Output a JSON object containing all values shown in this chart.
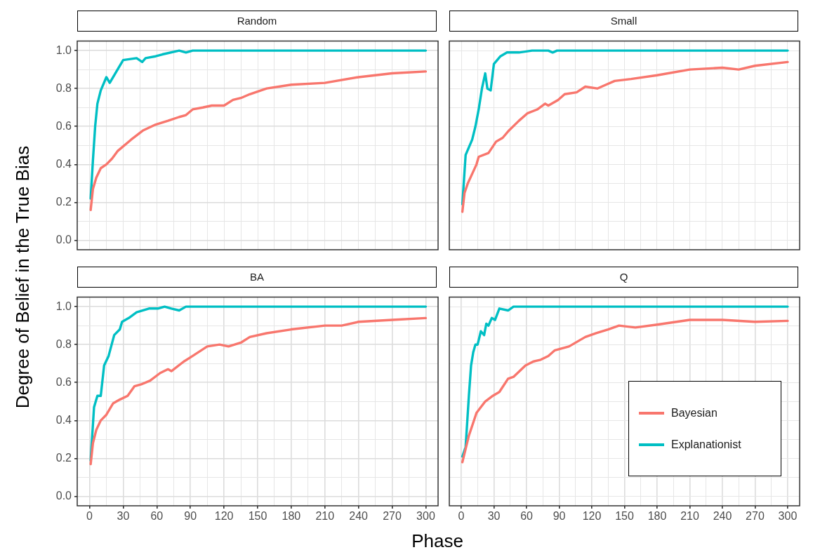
{
  "chart_data": [
    {
      "type": "line",
      "title": "Random",
      "ylabel": "Degree of Belief in the True Bias",
      "xlim": [
        -11,
        311
      ],
      "ylim": [
        -0.05,
        1.05
      ],
      "tick_labels": "y",
      "grid": true,
      "legend": false,
      "marker": "none",
      "line_style": "solid",
      "xticks": [
        {
          "value": 0,
          "label": null
        },
        {
          "value": 15,
          "label": null
        },
        {
          "value": 30,
          "label": null
        },
        {
          "value": 45,
          "label": null
        },
        {
          "value": 60,
          "label": null
        },
        {
          "value": 75,
          "label": null
        },
        {
          "value": 90,
          "label": null
        },
        {
          "value": 105,
          "label": null
        },
        {
          "value": 120,
          "label": null
        },
        {
          "value": 135,
          "label": null
        },
        {
          "value": 150,
          "label": null
        },
        {
          "value": 165,
          "label": null
        },
        {
          "value": 180,
          "label": null
        },
        {
          "value": 195,
          "label": null
        },
        {
          "value": 210,
          "label": null
        },
        {
          "value": 225,
          "label": null
        },
        {
          "value": 240,
          "label": null
        },
        {
          "value": 255,
          "label": null
        },
        {
          "value": 270,
          "label": null
        },
        {
          "value": 285,
          "label": null
        },
        {
          "value": 300,
          "label": null
        }
      ],
      "yticks": [
        {
          "value": 0,
          "label": "0.0"
        },
        {
          "value": 0.1,
          "label": null
        },
        {
          "value": 0.2,
          "label": "0.2"
        },
        {
          "value": 0.3,
          "label": null
        },
        {
          "value": 0.4,
          "label": "0.4"
        },
        {
          "value": 0.5,
          "label": null
        },
        {
          "value": 0.6,
          "label": "0.6"
        },
        {
          "value": 0.7,
          "label": null
        },
        {
          "value": 0.8,
          "label": "0.8"
        },
        {
          "value": 0.9,
          "label": null
        },
        {
          "value": 1,
          "label": "1.0"
        }
      ],
      "series": [
        {
          "color": "#f8766d",
          "x": [
            1,
            3,
            6,
            10,
            15,
            20,
            25,
            37,
            48,
            59,
            70,
            80,
            86,
            92,
            101,
            109,
            120,
            128,
            135,
            143,
            158,
            180,
            210,
            240,
            270,
            300
          ],
          "values": [
            0.16,
            0.27,
            0.33,
            0.38,
            0.4,
            0.43,
            0.47,
            0.53,
            0.58,
            0.61,
            0.63,
            0.65,
            0.66,
            0.69,
            0.7,
            0.71,
            0.71,
            0.74,
            0.75,
            0.77,
            0.8,
            0.82,
            0.83,
            0.86,
            0.88,
            0.89
          ]
        },
        {
          "color": "#00bfc4",
          "x": [
            1,
            3,
            5,
            7,
            10,
            15,
            18,
            25,
            30,
            42,
            47,
            50,
            59,
            65,
            80,
            86,
            92,
            99,
            300
          ],
          "values": [
            0.22,
            0.42,
            0.6,
            0.72,
            0.79,
            0.86,
            0.83,
            0.9,
            0.95,
            0.96,
            0.94,
            0.96,
            0.97,
            0.98,
            1,
            0.99,
            1,
            1,
            1
          ]
        }
      ]
    },
    {
      "type": "line",
      "title": "Small",
      "xlim": [
        -11,
        311
      ],
      "ylim": [
        -0.05,
        1.05
      ],
      "tick_labels": false,
      "grid": true,
      "legend": false,
      "marker": "none",
      "line_style": "solid",
      "xticks": [
        {
          "value": 0,
          "label": null
        },
        {
          "value": 15,
          "label": null
        },
        {
          "value": 30,
          "label": null
        },
        {
          "value": 45,
          "label": null
        },
        {
          "value": 60,
          "label": null
        },
        {
          "value": 75,
          "label": null
        },
        {
          "value": 90,
          "label": null
        },
        {
          "value": 105,
          "label": null
        },
        {
          "value": 120,
          "label": null
        },
        {
          "value": 135,
          "label": null
        },
        {
          "value": 150,
          "label": null
        },
        {
          "value": 165,
          "label": null
        },
        {
          "value": 180,
          "label": null
        },
        {
          "value": 195,
          "label": null
        },
        {
          "value": 210,
          "label": null
        },
        {
          "value": 225,
          "label": null
        },
        {
          "value": 240,
          "label": null
        },
        {
          "value": 255,
          "label": null
        },
        {
          "value": 270,
          "label": null
        },
        {
          "value": 285,
          "label": null
        },
        {
          "value": 300,
          "label": null
        }
      ],
      "yticks": [
        {
          "value": 0,
          "label": null
        },
        {
          "value": 0.1,
          "label": null
        },
        {
          "value": 0.2,
          "label": null
        },
        {
          "value": 0.3,
          "label": null
        },
        {
          "value": 0.4,
          "label": null
        },
        {
          "value": 0.5,
          "label": null
        },
        {
          "value": 0.6,
          "label": null
        },
        {
          "value": 0.7,
          "label": null
        },
        {
          "value": 0.8,
          "label": null
        },
        {
          "value": 0.9,
          "label": null
        },
        {
          "value": 1,
          "label": null
        }
      ],
      "series": [
        {
          "color": "#f8766d",
          "x": [
            1,
            3,
            6,
            10,
            14,
            16,
            25,
            32,
            38,
            44,
            53,
            61,
            70,
            77,
            80,
            89,
            95,
            106,
            114,
            125,
            133,
            141,
            156,
            180,
            210,
            240,
            255,
            270,
            300
          ],
          "values": [
            0.15,
            0.25,
            0.3,
            0.35,
            0.4,
            0.44,
            0.46,
            0.52,
            0.54,
            0.58,
            0.63,
            0.67,
            0.69,
            0.72,
            0.71,
            0.74,
            0.77,
            0.78,
            0.81,
            0.8,
            0.82,
            0.84,
            0.85,
            0.87,
            0.9,
            0.91,
            0.9,
            0.92,
            0.94
          ]
        },
        {
          "color": "#00bfc4",
          "x": [
            1,
            4,
            10,
            13,
            16,
            19,
            22,
            24,
            27,
            30,
            36,
            42,
            53,
            65,
            80,
            84,
            88,
            300
          ],
          "values": [
            0.19,
            0.45,
            0.53,
            0.6,
            0.69,
            0.8,
            0.88,
            0.8,
            0.79,
            0.93,
            0.97,
            0.99,
            0.99,
            1,
            1,
            0.99,
            1,
            1
          ]
        }
      ]
    },
    {
      "type": "line",
      "title": "BA",
      "xlabel": "Phase",
      "xlim": [
        -11,
        311
      ],
      "ylim": [
        -0.05,
        1.05
      ],
      "grid": true,
      "legend": false,
      "marker": "none",
      "line_style": "solid",
      "xticks": [
        0,
        {
          "value": 15,
          "label": null
        },
        30,
        {
          "value": 45,
          "label": null
        },
        60,
        {
          "value": 75,
          "label": null
        },
        90,
        {
          "value": 105,
          "label": null
        },
        120,
        {
          "value": 135,
          "label": null
        },
        150,
        {
          "value": 165,
          "label": null
        },
        180,
        {
          "value": 195,
          "label": null
        },
        210,
        {
          "value": 225,
          "label": null
        },
        240,
        {
          "value": 255,
          "label": null
        },
        270,
        {
          "value": 285,
          "label": null
        },
        300
      ],
      "yticks": [
        {
          "value": 0,
          "label": "0.0"
        },
        {
          "value": 0.1,
          "label": null
        },
        {
          "value": 0.2,
          "label": "0.2"
        },
        {
          "value": 0.3,
          "label": null
        },
        {
          "value": 0.4,
          "label": "0.4"
        },
        {
          "value": 0.5,
          "label": null
        },
        {
          "value": 0.6,
          "label": "0.6"
        },
        {
          "value": 0.7,
          "label": null
        },
        {
          "value": 0.8,
          "label": "0.8"
        },
        {
          "value": 0.9,
          "label": null
        },
        {
          "value": 1,
          "label": "1.0"
        }
      ],
      "series": [
        {
          "color": "#f8766d",
          "x": [
            1,
            3,
            6,
            10,
            15,
            21,
            27,
            34,
            40,
            46,
            54,
            63,
            70,
            73,
            84,
            92,
            105,
            116,
            124,
            135,
            143,
            158,
            180,
            210,
            225,
            240,
            270,
            300
          ],
          "values": [
            0.17,
            0.28,
            0.35,
            0.4,
            0.43,
            0.49,
            0.51,
            0.53,
            0.58,
            0.59,
            0.61,
            0.65,
            0.67,
            0.66,
            0.71,
            0.74,
            0.79,
            0.8,
            0.79,
            0.81,
            0.84,
            0.86,
            0.88,
            0.9,
            0.9,
            0.92,
            0.93,
            0.94
          ]
        },
        {
          "color": "#00bfc4",
          "x": [
            1,
            4,
            7,
            10,
            13,
            17,
            22,
            27,
            29,
            35,
            42,
            53,
            61,
            67,
            73,
            80,
            86,
            300
          ],
          "values": [
            0.19,
            0.47,
            0.53,
            0.53,
            0.69,
            0.74,
            0.85,
            0.88,
            0.92,
            0.94,
            0.97,
            0.99,
            0.99,
            1,
            0.99,
            0.98,
            1,
            1
          ]
        }
      ]
    },
    {
      "type": "line",
      "title": "Q",
      "xlim": [
        -11,
        311
      ],
      "ylim": [
        -0.05,
        1.05
      ],
      "tick_labels": "x",
      "grid": true,
      "legend": "bottom right",
      "marker": "none",
      "line_style": "solid",
      "xticks": [
        0,
        {
          "value": 15,
          "label": null
        },
        30,
        {
          "value": 45,
          "label": null
        },
        60,
        {
          "value": 75,
          "label": null
        },
        90,
        {
          "value": 105,
          "label": null
        },
        120,
        {
          "value": 135,
          "label": null
        },
        150,
        {
          "value": 165,
          "label": null
        },
        180,
        {
          "value": 195,
          "label": null
        },
        210,
        {
          "value": 225,
          "label": null
        },
        240,
        {
          "value": 255,
          "label": null
        },
        270,
        {
          "value": 285,
          "label": null
        },
        300
      ],
      "yticks": [
        {
          "value": 0,
          "label": null
        },
        {
          "value": 0.1,
          "label": null
        },
        {
          "value": 0.2,
          "label": null
        },
        {
          "value": 0.3,
          "label": null
        },
        {
          "value": 0.4,
          "label": null
        },
        {
          "value": 0.5,
          "label": null
        },
        {
          "value": 0.6,
          "label": null
        },
        {
          "value": 0.7,
          "label": null
        },
        {
          "value": 0.8,
          "label": null
        },
        {
          "value": 0.9,
          "label": null
        },
        {
          "value": 1,
          "label": null
        }
      ],
      "series": [
        {
          "name": "Bayesian",
          "color": "#f8766d",
          "x": [
            1,
            7,
            14,
            22,
            29,
            35,
            43,
            48,
            59,
            66,
            73,
            80,
            86,
            99,
            114,
            124,
            135,
            145,
            160,
            180,
            210,
            240,
            270,
            300
          ],
          "values": [
            0.18,
            0.32,
            0.44,
            0.5,
            0.53,
            0.55,
            0.62,
            0.63,
            0.69,
            0.71,
            0.72,
            0.74,
            0.77,
            0.79,
            0.84,
            0.86,
            0.88,
            0.9,
            0.89,
            0.905,
            0.93,
            0.93,
            0.92,
            0.925
          ]
        },
        {
          "name": "Explanationist",
          "color": "#00bfc4",
          "x": [
            1,
            4,
            7,
            9,
            11,
            13,
            15,
            18,
            21,
            23,
            25,
            28,
            31,
            35,
            43,
            48,
            300
          ],
          "values": [
            0.21,
            0.26,
            0.53,
            0.69,
            0.76,
            0.8,
            0.8,
            0.87,
            0.85,
            0.91,
            0.9,
            0.94,
            0.93,
            0.99,
            0.98,
            1,
            1
          ]
        }
      ]
    }
  ]
}
